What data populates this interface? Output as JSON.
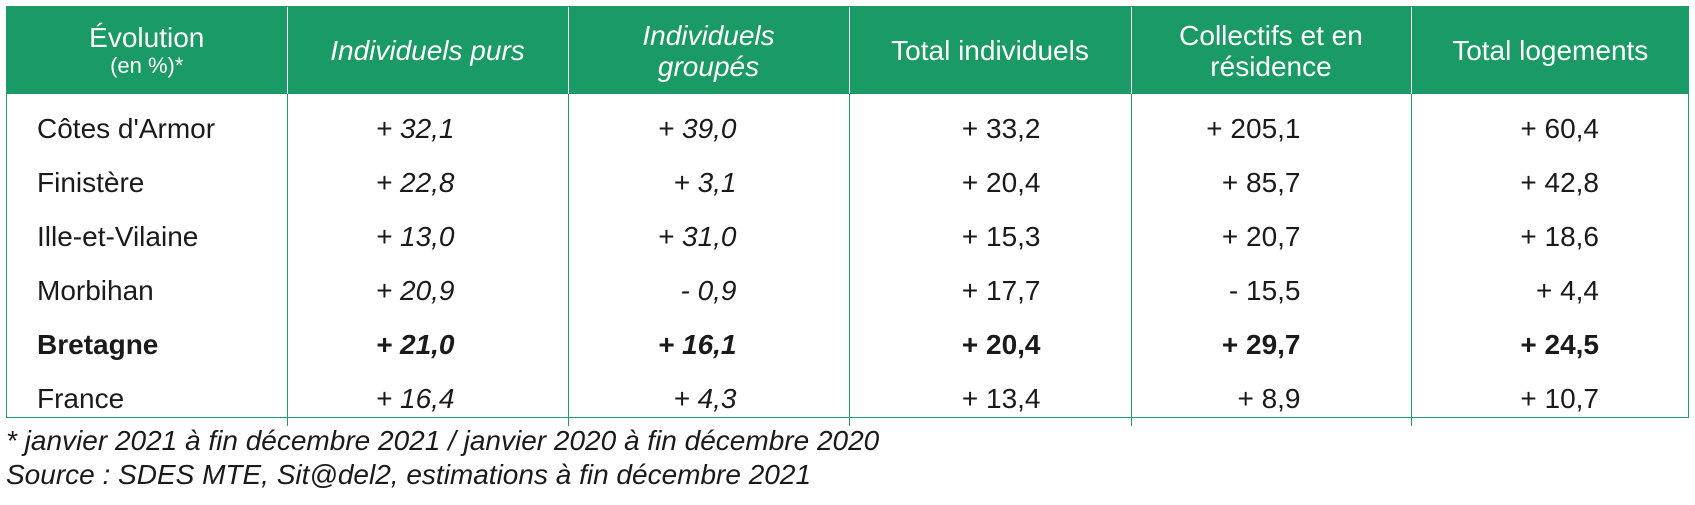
{
  "header": {
    "col0_line1": "Évolution",
    "col0_line2": "(en %)*",
    "col1": "Individuels purs",
    "col2_line1": "Individuels",
    "col2_line2": "groupés",
    "col3": "Total individuels",
    "col4_line1": "Collectifs et en",
    "col4_line2": "résidence",
    "col5": "Total logements"
  },
  "rows": [
    {
      "label": "Côtes d'Armor",
      "v1": "+ 32,1",
      "v2": "+ 39,0",
      "v3": "+ 33,2",
      "v4": "+ 205,1",
      "v5": "+ 60,4"
    },
    {
      "label": "Finistère",
      "v1": "+ 22,8",
      "v2": "+ 3,1",
      "v3": "+ 20,4",
      "v4": "+ 85,7",
      "v5": "+ 42,8"
    },
    {
      "label": "Ille-et-Vilaine",
      "v1": "+ 13,0",
      "v2": "+ 31,0",
      "v3": "+ 15,3",
      "v4": "+ 20,7",
      "v5": "+ 18,6"
    },
    {
      "label": "Morbihan",
      "v1": "+ 20,9",
      "v2": "- 0,9",
      "v3": "+ 17,7",
      "v4": "- 15,5",
      "v5": "+ 4,4"
    },
    {
      "label": "Bretagne",
      "v1": "+ 21,0",
      "v2": "+ 16,1",
      "v3": "+ 20,4",
      "v4": "+ 29,7",
      "v5": "+ 24,5"
    },
    {
      "label": "France",
      "v1": "+ 16,4",
      "v2": "+ 4,3",
      "v3": "+ 13,4",
      "v4": "+ 8,9",
      "v5": "+ 10,7"
    }
  ],
  "notes": {
    "footnote": "* janvier 2021 à fin décembre 2021 / janvier 2020 à fin décembre 2020",
    "source": "Source : SDES MTE, Sit@del2, estimations à fin décembre 2021"
  },
  "colors": {
    "header_bg": "#1a9b65",
    "border": "#1f9c67"
  }
}
